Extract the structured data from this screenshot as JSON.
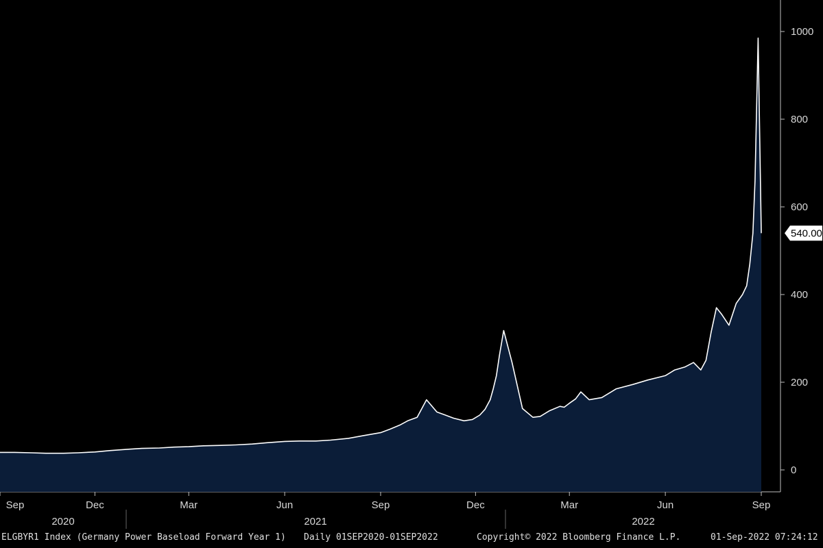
{
  "chart_data": {
    "type": "area",
    "ticker": "ELGBYR1 Index",
    "description": "(Germany Power Baseload Forward Year 1)",
    "frequency_range": "Daily 01SEP2020-01SEP2022",
    "copyright": "Copyright© 2022 Bloomberg Finance L.P.",
    "timestamp": "01-Sep-2022 07:24:12",
    "x_axis": {
      "month_labels": [
        "Sep",
        "Dec",
        "Mar",
        "Jun",
        "Sep",
        "Dec",
        "Mar",
        "Jun",
        "Sep"
      ],
      "month_dates": [
        "2020-09-01",
        "2020-12-01",
        "2021-03-01",
        "2021-06-01",
        "2021-09-01",
        "2021-12-01",
        "2022-03-01",
        "2022-06-01",
        "2022-09-01"
      ],
      "years": [
        "2020",
        "2021",
        "2022"
      ],
      "range": [
        "2020-09-01",
        "2022-09-01"
      ]
    },
    "y_axis": {
      "ticks": [
        0,
        200,
        400,
        600,
        800,
        1000
      ],
      "range": [
        -50,
        1060
      ],
      "position": "right"
    },
    "last_value_label": "540.00",
    "colors": {
      "background": "#000000",
      "area_fill": "#0b1d38",
      "line": "#ffffff",
      "text": "#d8d8d8"
    },
    "series": [
      {
        "x": [
          "2020-09-01",
          "2020-09-15",
          "2020-10-01",
          "2020-10-15",
          "2020-11-01",
          "2020-11-15",
          "2020-12-01",
          "2020-12-15",
          "2021-01-01",
          "2021-01-15",
          "2021-02-01",
          "2021-02-15",
          "2021-03-01",
          "2021-03-15",
          "2021-04-01",
          "2021-04-15",
          "2021-05-01",
          "2021-05-15",
          "2021-06-01",
          "2021-06-15",
          "2021-07-01",
          "2021-07-15",
          "2021-08-01",
          "2021-08-15",
          "2021-09-01",
          "2021-09-10",
          "2021-09-20",
          "2021-09-27",
          "2021-10-06",
          "2021-10-15",
          "2021-10-25",
          "2021-11-01",
          "2021-11-10",
          "2021-11-20",
          "2021-11-28",
          "2021-12-05",
          "2021-12-10",
          "2021-12-15",
          "2021-12-18",
          "2021-12-21",
          "2021-12-24",
          "2021-12-28",
          "2022-01-05",
          "2022-01-15",
          "2022-01-25",
          "2022-02-01",
          "2022-02-10",
          "2022-02-20",
          "2022-02-24",
          "2022-03-01",
          "2022-03-07",
          "2022-03-12",
          "2022-03-20",
          "2022-04-01",
          "2022-04-15",
          "2022-05-01",
          "2022-05-15",
          "2022-06-01",
          "2022-06-10",
          "2022-06-20",
          "2022-06-28",
          "2022-07-05",
          "2022-07-10",
          "2022-07-15",
          "2022-07-20",
          "2022-07-25",
          "2022-08-01",
          "2022-08-08",
          "2022-08-14",
          "2022-08-18",
          "2022-08-21",
          "2022-08-24",
          "2022-08-26",
          "2022-08-29",
          "2022-09-01"
        ],
        "values": [
          40,
          40,
          39,
          38,
          38,
          39,
          41,
          44,
          47,
          49,
          50,
          52,
          53,
          55,
          56,
          57,
          59,
          62,
          65,
          66,
          66,
          68,
          72,
          78,
          85,
          93,
          103,
          112,
          120,
          160,
          132,
          126,
          118,
          112,
          115,
          125,
          138,
          160,
          185,
          215,
          262,
          318,
          245,
          140,
          120,
          122,
          135,
          145,
          143,
          152,
          162,
          178,
          160,
          165,
          185,
          195,
          205,
          215,
          228,
          235,
          245,
          228,
          250,
          315,
          370,
          355,
          330,
          380,
          400,
          420,
          470,
          540,
          660,
          985,
          540
        ]
      }
    ]
  }
}
